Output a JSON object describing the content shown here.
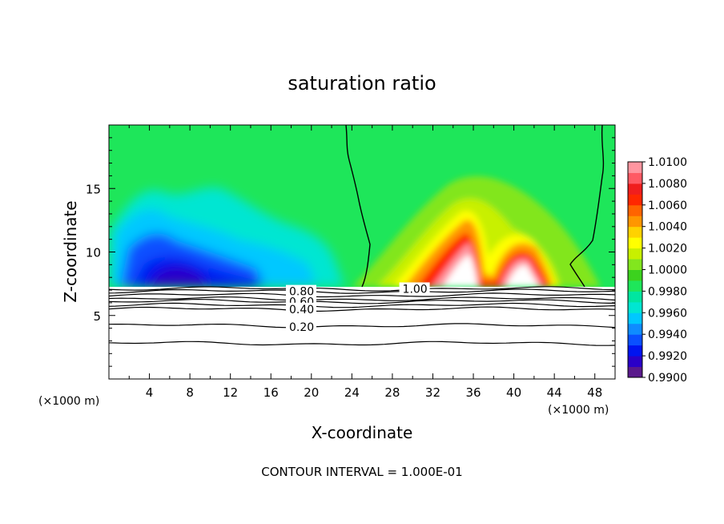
{
  "chart_data": {
    "type": "heatmap",
    "title": "saturation ratio",
    "xlabel": "X-coordinate",
    "ylabel": "Z-coordinate",
    "x_unit_left": "(×1000 m)",
    "x_unit_right": "(×1000 m)",
    "xlim": [
      0,
      50
    ],
    "ylim": [
      0,
      20
    ],
    "x_ticks": [
      "4",
      "8",
      "12",
      "16",
      "20",
      "24",
      "28",
      "32",
      "36",
      "40",
      "44",
      "48"
    ],
    "x_tick_values": [
      4,
      8,
      12,
      16,
      20,
      24,
      28,
      32,
      36,
      40,
      44,
      48
    ],
    "y_ticks": [
      "5",
      "10",
      "15"
    ],
    "y_tick_values": [
      5,
      10,
      15
    ],
    "footer": "CONTOUR INTERVAL = 1.000E-01",
    "contour_interval": 0.1,
    "colorbar": {
      "range": [
        0.99,
        1.01
      ],
      "labels": [
        "1.0100",
        "1.0080",
        "1.0060",
        "1.0040",
        "1.0020",
        "1.0000",
        "0.9980",
        "0.9960",
        "0.9940",
        "0.9920",
        "0.9900"
      ],
      "label_values": [
        1.01,
        1.008,
        1.006,
        1.004,
        1.002,
        1.0,
        0.998,
        0.996,
        0.994,
        0.992,
        0.99
      ],
      "colors": [
        "#5a1a8c",
        "#2a00c8",
        "#0014f0",
        "#0a50ff",
        "#0f8cff",
        "#00c8ff",
        "#00e6d2",
        "#00e6a0",
        "#1ee65a",
        "#3cd21e",
        "#82e61e",
        "#c8f000",
        "#ffff00",
        "#ffd200",
        "#ff9600",
        "#ff6400",
        "#ff2800",
        "#f01e1e",
        "#ff5a64",
        "#ff96a0"
      ]
    },
    "cloud_base_z": 7.3,
    "contour_labels": [
      {
        "text": "1.00",
        "value": 1.0,
        "x": 29,
        "z": 7.1
      },
      {
        "text": "0.80",
        "value": 0.8,
        "x": 17.8,
        "z": 6.9
      },
      {
        "text": "0.60",
        "value": 0.6,
        "x": 17.8,
        "z": 6.1
      },
      {
        "text": "0.40",
        "value": 0.4,
        "x": 17.8,
        "z": 5.5
      },
      {
        "text": "0.20",
        "value": 0.2,
        "x": 17.8,
        "z": 4.1
      }
    ],
    "contour_lines_z": [
      7.1,
      6.9,
      6.6,
      6.3,
      6.1,
      5.8,
      5.5,
      4.2,
      2.8
    ],
    "supersaturation_regions": [
      {
        "x": 35,
        "z_top": 11.8,
        "peak": 1.01
      },
      {
        "x": 40.5,
        "z_top": 10.2,
        "peak": 1.009
      }
    ],
    "subsaturation_regions": [
      {
        "x": 7,
        "z_top": 10.5,
        "min": 0.99
      },
      {
        "x": 13,
        "z_top": 9,
        "min": 0.992
      }
    ],
    "grid": false,
    "legend": "colorbar right"
  }
}
